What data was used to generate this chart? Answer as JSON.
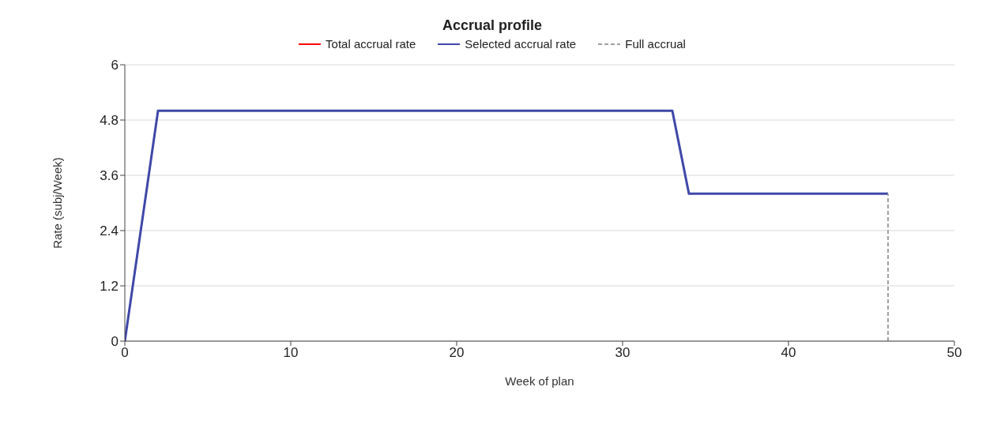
{
  "chart_data": {
    "type": "line",
    "title": "Accrual profile",
    "xlabel": "Week of plan",
    "ylabel": "Rate (subj/Week)",
    "series": [
      {
        "name": "Total accrual rate",
        "color": "#ff0000"
      },
      {
        "name": "Selected accrual rate",
        "color": "#3f48a8",
        "x": [
          0,
          2,
          33,
          34,
          46
        ],
        "values": [
          0,
          5,
          5,
          3.2,
          3.2
        ]
      },
      {
        "name": "Full accrual",
        "color": "#a0a0a0",
        "x": [
          46,
          46
        ],
        "values": [
          0,
          3.2
        ],
        "line_style": "dashed"
      }
    ],
    "xlim": [
      0,
      50
    ],
    "xticks": [
      0,
      10,
      20,
      30,
      40,
      50
    ],
    "ylim": [
      0,
      6
    ],
    "yticks": [
      0,
      1.2,
      2.4,
      3.6,
      4.8,
      6
    ],
    "grid": "y",
    "legend": "top",
    "marker": "none",
    "line_style": "solid"
  }
}
